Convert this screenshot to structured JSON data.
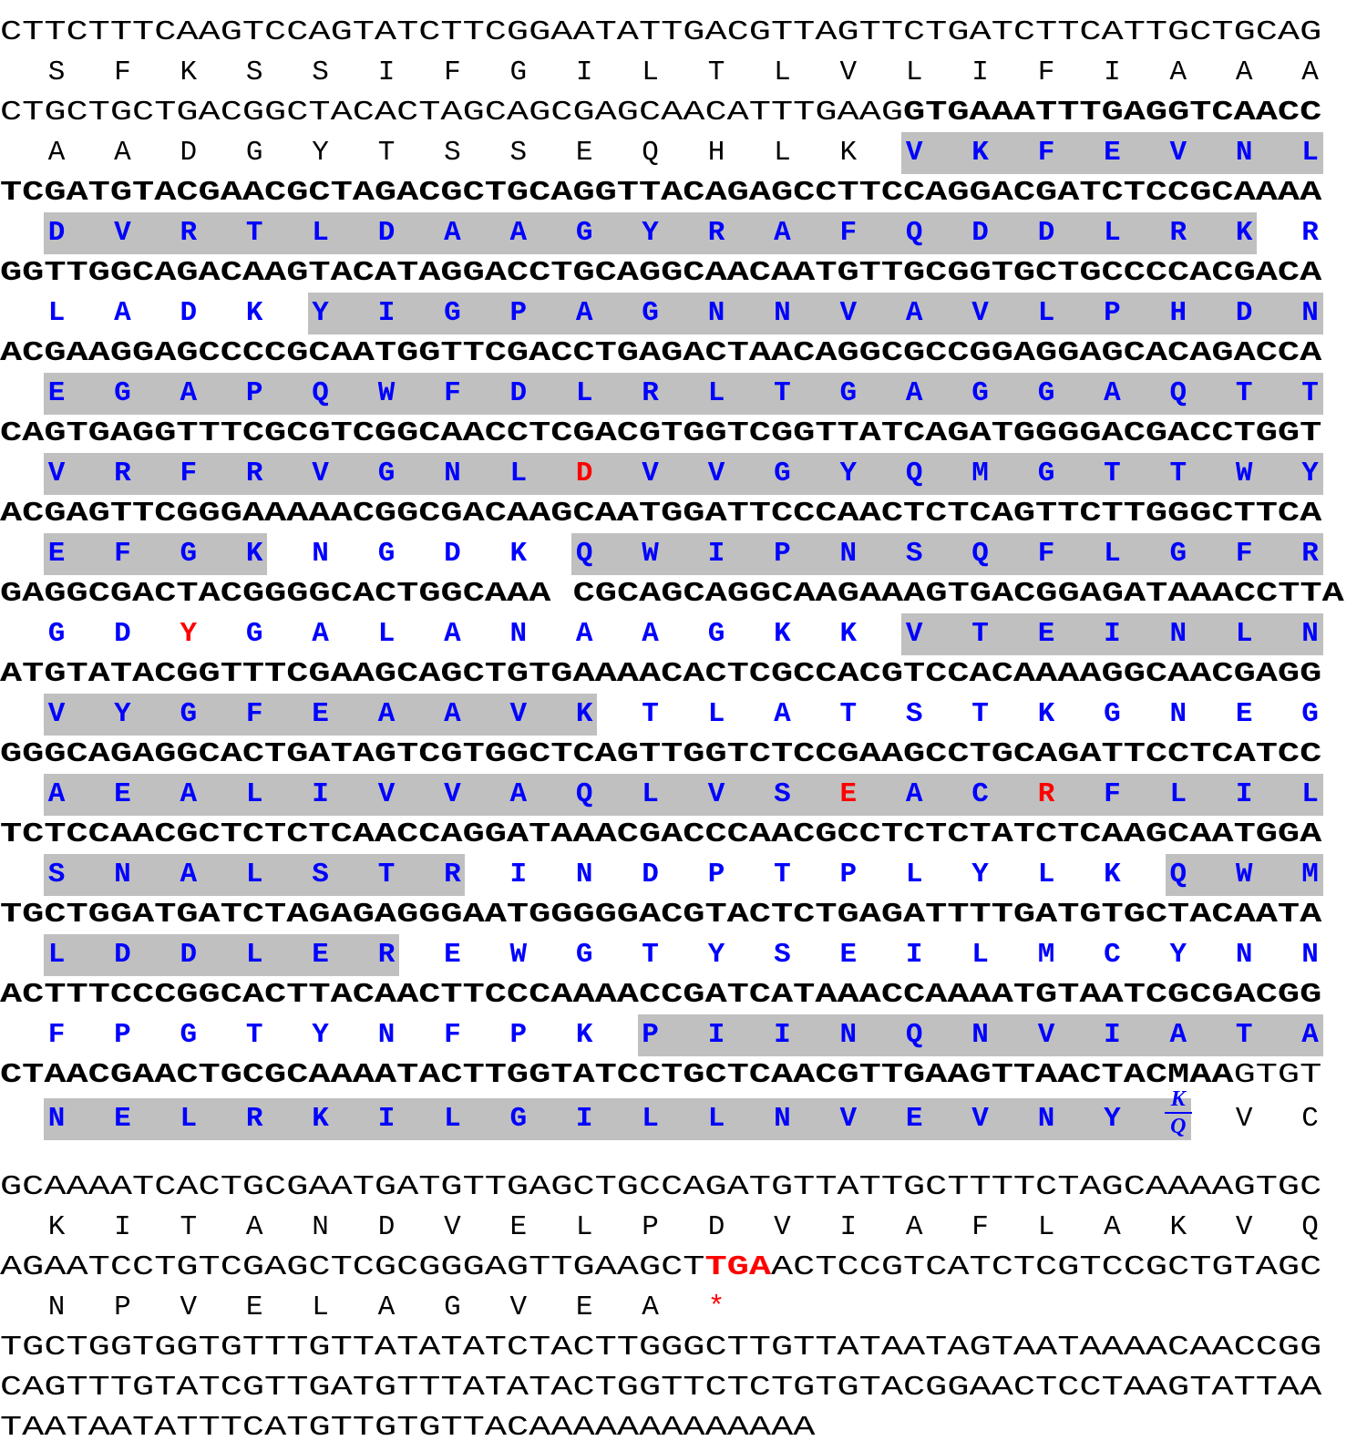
{
  "colors": {
    "coding_residue": "#0000ff",
    "mutation_residue": "#ff0000",
    "stop_codon": "#ff0000",
    "highlight": "#c0c0c0",
    "text": "#000000"
  },
  "sequence": [
    {
      "dna": [
        {
          "t": "CTTCTTTCAAGTCCAGTATCTTCGGAATATTGACGTTAGTTCTGATCTTCATTGCTGCAG"
        }
      ],
      "aa": [
        "S",
        "F",
        "K",
        "S",
        "S",
        "I",
        "F",
        "G",
        "I",
        "L",
        "T",
        "L",
        "V",
        "L",
        "I",
        "F",
        "I",
        "A",
        "A",
        "A"
      ],
      "coding": [],
      "hl": []
    },
    {
      "dna": [
        {
          "t": "CTGCTGCTGACGGCTACACTAGCAGCGAGCAACATTTGAAG"
        },
        {
          "t": "GTGAAATTTGAGGTCAACC",
          "s": "b"
        }
      ],
      "aa": [
        "A",
        "A",
        "D",
        "G",
        "Y",
        "T",
        "S",
        "S",
        "E",
        "Q",
        "H",
        "L",
        "K",
        "V",
        "K",
        "F",
        "E",
        "V",
        "N",
        "L"
      ],
      "coding": [
        13,
        19
      ],
      "hl": [
        [
          13,
          19
        ]
      ]
    },
    {
      "dna": [
        {
          "t": "TCGATGTACGAACGCTAGACGCTGCAGGTTACAGAGCCTTCCAGGACGATCTCCGCAAAA",
          "s": "b"
        }
      ],
      "aa": [
        "D",
        "V",
        "R",
        "T",
        "L",
        "D",
        "A",
        "A",
        "G",
        "Y",
        "R",
        "A",
        "F",
        "Q",
        "D",
        "D",
        "L",
        "R",
        "K",
        "R"
      ],
      "coding": [
        0,
        19
      ],
      "hl": [
        [
          0,
          18
        ]
      ]
    },
    {
      "dna": [
        {
          "t": "GGTTGGCAGACAAGTACATAGGACCTGCAGGCAACAATGTTGCGGTGCTGCCCCACGACA",
          "s": "b"
        }
      ],
      "aa": [
        "L",
        "A",
        "D",
        "K",
        "Y",
        "I",
        "G",
        "P",
        "A",
        "G",
        "N",
        "N",
        "V",
        "A",
        "V",
        "L",
        "P",
        "H",
        "D",
        "N"
      ],
      "coding": [
        0,
        19
      ],
      "hl": [
        [
          4,
          19
        ]
      ]
    },
    {
      "dna": [
        {
          "t": "ACGAAGGAGCCCCGCAATGGTTCGACCTGAGACTAACAGGCGCCGGAGGAGCACAGACCA",
          "s": "b"
        }
      ],
      "aa": [
        "E",
        "G",
        "A",
        "P",
        "Q",
        "W",
        "F",
        "D",
        "L",
        "R",
        "L",
        "T",
        "G",
        "A",
        "G",
        "G",
        "A",
        "Q",
        "T",
        "T"
      ],
      "coding": [
        0,
        19
      ],
      "hl": [
        [
          0,
          19
        ]
      ]
    },
    {
      "dna": [
        {
          "t": "CAGTGAGGTTTCGCGTCGGCAACCTCGACGTGGTCGGTTATCAGATGGGGACGACCTGGT",
          "s": "b"
        }
      ],
      "aa": [
        "V",
        "R",
        "F",
        "R",
        "V",
        "G",
        "N",
        "L",
        "D",
        "V",
        "V",
        "G",
        "Y",
        "Q",
        "M",
        "G",
        "T",
        "T",
        "W",
        "Y"
      ],
      "coding": [
        0,
        19
      ],
      "hl": [
        [
          0,
          19
        ]
      ],
      "mut": [
        8
      ]
    },
    {
      "dna": [
        {
          "t": "ACGAGTTCGGGAAAAACGGCGACAAGCAATGGATTCCCAACTCTCAGTTCTTGGGCTTCA",
          "s": "b"
        }
      ],
      "aa": [
        "E",
        "F",
        "G",
        "K",
        "N",
        "G",
        "D",
        "K",
        "Q",
        "W",
        "I",
        "P",
        "N",
        "S",
        "Q",
        "F",
        "L",
        "G",
        "F",
        "R"
      ],
      "coding": [
        0,
        19
      ],
      "hl": [
        [
          0,
          3
        ],
        [
          8,
          19
        ]
      ]
    },
    {
      "dna": [
        {
          "t": "GAGGCGACTACGGGGCACTGGCAAA CGCAGCAGGCAAGAAAGTGACGGAGATAAACCTTA",
          "s": "b"
        }
      ],
      "aa": [
        "G",
        "D",
        "Y",
        "G",
        "A",
        "L",
        "A",
        "N",
        "A",
        "A",
        "G",
        "K",
        "K",
        "V",
        "T",
        "E",
        "I",
        "N",
        "L",
        "N"
      ],
      "coding": [
        0,
        19
      ],
      "hl": [
        [
          13,
          19
        ]
      ],
      "mut": [
        2
      ]
    },
    {
      "dna": [
        {
          "t": "ATGTATACGGTTTCGAAGCAGCTGTGAAAACACTCGCCACGTCCACAAAAGGCAACGAGG",
          "s": "b"
        }
      ],
      "aa": [
        "V",
        "Y",
        "G",
        "F",
        "E",
        "A",
        "A",
        "V",
        "K",
        "T",
        "L",
        "A",
        "T",
        "S",
        "T",
        "K",
        "G",
        "N",
        "E",
        "G"
      ],
      "coding": [
        0,
        19
      ],
      "hl": [
        [
          0,
          8
        ]
      ]
    },
    {
      "dna": [
        {
          "t": "GGGCAGAGGCACTGATAGTCGTGGCTCAGTTGGTCTCCGAAGCCTGCAGATTCCTCATCC",
          "s": "b"
        }
      ],
      "aa": [
        "A",
        "E",
        "A",
        "L",
        "I",
        "V",
        "V",
        "A",
        "Q",
        "L",
        "V",
        "S",
        "E",
        "A",
        "C",
        "R",
        "F",
        "L",
        "I",
        "L"
      ],
      "coding": [
        0,
        19
      ],
      "hl": [
        [
          0,
          19
        ]
      ],
      "mut": [
        12,
        15
      ]
    },
    {
      "dna": [
        {
          "t": "TCTCCAACGCTCTCTCAACCAGGATAAACGACCCAACGCCTCTCTATCTCAAGCAATGGA",
          "s": "b"
        }
      ],
      "aa": [
        "S",
        "N",
        "A",
        "L",
        "S",
        "T",
        "R",
        "I",
        "N",
        "D",
        "P",
        "T",
        "P",
        "L",
        "Y",
        "L",
        "K",
        "Q",
        "W",
        "M"
      ],
      "coding": [
        0,
        19
      ],
      "hl": [
        [
          0,
          6
        ],
        [
          17,
          19
        ]
      ]
    },
    {
      "dna": [
        {
          "t": "TGCTGGATGATCTAGAGAGGGAATGGGGGACGTACTCTGAGATTTTGATGTGCTACAATA",
          "s": "b"
        }
      ],
      "aa": [
        "L",
        "D",
        "D",
        "L",
        "E",
        "R",
        "E",
        "W",
        "G",
        "T",
        "Y",
        "S",
        "E",
        "I",
        "L",
        "M",
        "C",
        "Y",
        "N",
        "N"
      ],
      "coding": [
        0,
        19
      ],
      "hl": [
        [
          0,
          5
        ]
      ]
    },
    {
      "dna": [
        {
          "t": "ACTTTCCCGGCACTTACAACTTCCCAAAACCGATCATAAACCAAAATGTAATCGCGACGG",
          "s": "b"
        }
      ],
      "aa": [
        "F",
        "P",
        "G",
        "T",
        "Y",
        "N",
        "F",
        "P",
        "K",
        "P",
        "I",
        "I",
        "N",
        "Q",
        "N",
        "V",
        "I",
        "A",
        "T",
        "A"
      ],
      "coding": [
        0,
        19
      ],
      "hl": [
        [
          9,
          19
        ]
      ]
    },
    {
      "dna": [
        {
          "t": "CTAACGAACTGCGCAAAATACTTGGTATCCTGCTCAACGTTGAAGTTAACTACMAA",
          "s": "b"
        },
        {
          "t": "GTGT"
        }
      ],
      "aa": [
        "N",
        "E",
        "L",
        "R",
        "K",
        "I",
        "L",
        "G",
        "I",
        "L",
        "L",
        "N",
        "V",
        "E",
        "V",
        "N",
        "Y",
        "",
        "V",
        "C"
      ],
      "coding": [
        0,
        16
      ],
      "hl": [
        [
          0,
          17
        ]
      ]
    },
    {
      "dna": [
        {
          "t": "GCAAAATCACTGCGAATGATGTTGAGCTGCCAGATGTTATTGCTTTTCTAGCAAAAGTGC"
        }
      ],
      "aa": [
        "K",
        "I",
        "T",
        "A",
        "N",
        "D",
        "V",
        "E",
        "L",
        "P",
        "D",
        "V",
        "I",
        "A",
        "F",
        "L",
        "A",
        "K",
        "V",
        "Q"
      ],
      "coding": [],
      "hl": []
    },
    {
      "dna": [
        {
          "t": "AGAATCCTGTCGAGCTCGCGGGAGTTGAAGCT"
        },
        {
          "t": "TGA",
          "s": "stop"
        },
        {
          "t": "ACTCCGTCATCTCGTCCGCTGTAGC"
        }
      ],
      "aa": [
        "N",
        "P",
        "V",
        "E",
        "L",
        "A",
        "G",
        "V",
        "E",
        "A",
        "*"
      ],
      "coding": [],
      "hl": [],
      "star": [
        10
      ]
    },
    {
      "dna": [
        {
          "t": "TGCTGGTGGTGTTTGTTATATATCTACTTGGGCTTGTTATAATAGTAATAAAACAACCGG"
        }
      ]
    },
    {
      "dna": [
        {
          "t": "CAGTTTGTATCGTTGATGTTTATATACTGGTTCTCTGTGTACGGAACTCCTAAGTATTAA"
        }
      ]
    },
    {
      "dna": [
        {
          "t": "TAATAATATTTCATGTTGTGTTACAAAAAAAAAAAAA"
        }
      ]
    }
  ],
  "ambiguous_residue": {
    "top": "K",
    "bottom": "Q"
  }
}
